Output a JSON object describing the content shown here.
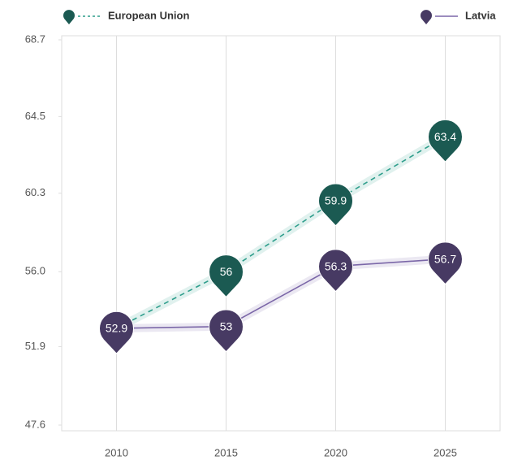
{
  "chart_data": {
    "type": "line",
    "categories": [
      "2010",
      "2015",
      "2020",
      "2025"
    ],
    "series": [
      {
        "name": "European Union",
        "color": "#1b5a52",
        "line_color": "#2f9e8c",
        "dashed": true,
        "values": [
          52.9,
          56,
          59.9,
          63.4
        ]
      },
      {
        "name": "Latvia",
        "color": "#473a63",
        "line_color": "#7b67a8",
        "dashed": false,
        "values": [
          52.9,
          53,
          56.3,
          56.7
        ]
      }
    ],
    "ylim": [
      47.6,
      68.7
    ],
    "yticks": [
      47.6,
      51.9,
      {
        "value": 56,
        "label": "56.0"
      },
      60.3,
      64.5,
      68.7
    ],
    "grid": true
  }
}
